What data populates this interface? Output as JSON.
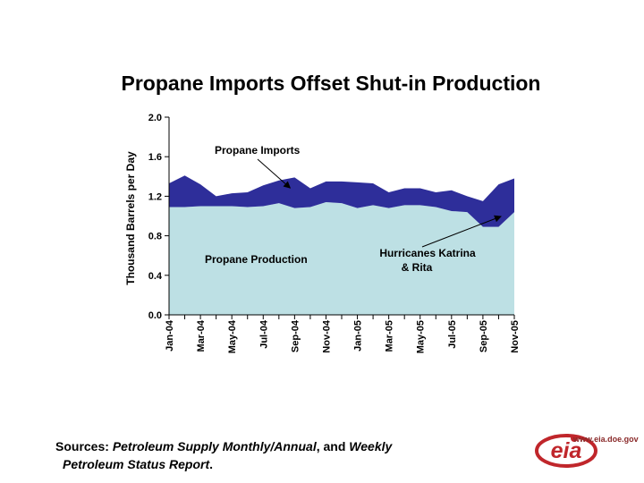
{
  "title": "Propane Imports Offset Shut-in Production",
  "colors": {
    "production": "#bde0e4",
    "imports": "#2e2e9a",
    "axis": "#000000",
    "logo": "#c0262b"
  },
  "chart_data": {
    "type": "area",
    "title": "Propane Imports Offset Shut-in Production",
    "ylabel": "Thousand Barrels per Day",
    "xlabel": "",
    "ylim": [
      0,
      2.0
    ],
    "yticks": [
      "2.0",
      "1.6",
      "1.2",
      "0.8",
      "0.4",
      "0.0"
    ],
    "x": [
      "Jan-04",
      "Feb-04",
      "Mar-04",
      "Apr-04",
      "May-04",
      "Jun-04",
      "Jul-04",
      "Aug-04",
      "Sep-04",
      "Oct-04",
      "Nov-04",
      "Dec-04",
      "Jan-05",
      "Feb-05",
      "Mar-05",
      "Apr-05",
      "May-05",
      "Jun-05",
      "Jul-05",
      "Aug-05",
      "Sep-05",
      "Oct-05",
      "Nov-05"
    ],
    "x_tick_labels": [
      "Jan-04",
      "Mar-04",
      "May-04",
      "Jul-04",
      "Sep-04",
      "Nov-04",
      "Jan-05",
      "Mar-05",
      "May-05",
      "Jul-05",
      "Sep-05",
      "Nov-05"
    ],
    "stacked": true,
    "series": [
      {
        "name": "Propane Production",
        "values": [
          1.09,
          1.09,
          1.1,
          1.1,
          1.1,
          1.09,
          1.1,
          1.13,
          1.08,
          1.09,
          1.14,
          1.13,
          1.08,
          1.11,
          1.08,
          1.11,
          1.11,
          1.09,
          1.05,
          1.04,
          0.89,
          0.89,
          1.04
        ]
      },
      {
        "name": "Propane Imports",
        "values": [
          0.24,
          0.32,
          0.22,
          0.1,
          0.13,
          0.15,
          0.21,
          0.23,
          0.31,
          0.19,
          0.21,
          0.22,
          0.26,
          0.22,
          0.16,
          0.17,
          0.17,
          0.15,
          0.21,
          0.16,
          0.26,
          0.43,
          0.34
        ]
      }
    ],
    "annotations": [
      {
        "text": "Propane Imports",
        "pointer": {
          "x": "Sep-04",
          "y": 1.32
        }
      },
      {
        "text": "Propane Production"
      },
      {
        "text_line1": "Hurricanes Katrina",
        "text_line2": "& Rita",
        "pointer": {
          "x": "Nov-05",
          "y": 1.05
        }
      }
    ],
    "grid": false
  },
  "sources": {
    "prefix": "Sources: ",
    "pub1": "Petroleum Supply Monthly/Annual",
    "mid": ", and ",
    "pub2_line1": "Weekly",
    "pub2_line2": "Petroleum Status Report",
    "end": "."
  },
  "logo": {
    "url": "www.eia.doe.gov",
    "mark": "eia"
  }
}
